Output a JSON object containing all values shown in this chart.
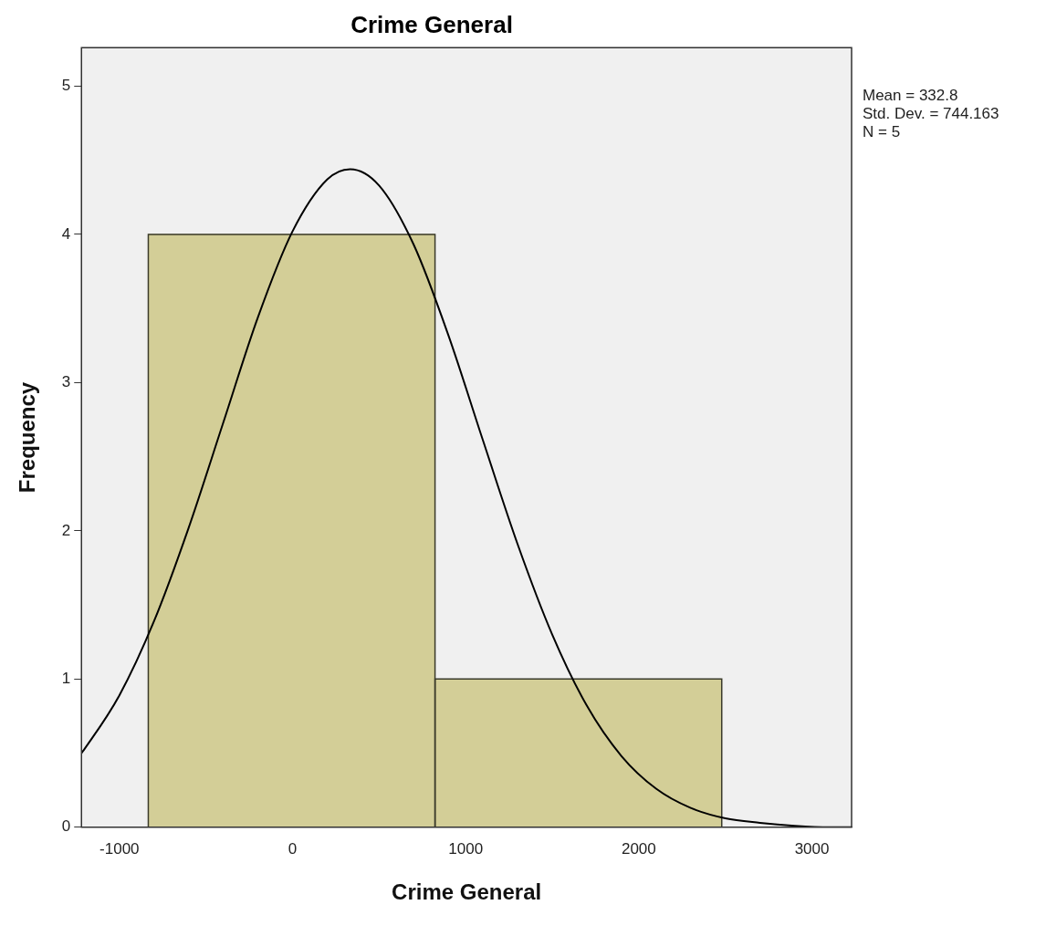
{
  "chart_data": {
    "type": "histogram",
    "title": "Crime General",
    "xlabel": "Crime General",
    "ylabel": "Frequency",
    "bins": [
      -833,
      823,
      2479
    ],
    "values": [
      4,
      1
    ],
    "color": "#d3ce97",
    "series": [
      {
        "type": "line",
        "color": "#000000",
        "x": [
          -1219,
          -1200,
          -1000,
          -800,
          -600,
          -400,
          -200,
          0,
          200,
          332.8,
          500,
          700,
          900,
          1100,
          1300,
          1500,
          1700,
          1900,
          2100,
          2300,
          2500,
          2700,
          2900,
          3100,
          3229
        ],
        "values": [
          0.5,
          0.53,
          0.89,
          1.39,
          2.02,
          2.73,
          3.44,
          4.02,
          4.37,
          4.44,
          4.33,
          3.93,
          3.32,
          2.61,
          1.91,
          1.3,
          0.82,
          0.48,
          0.26,
          0.13,
          0.06,
          0.03,
          0.01,
          0,
          0
        ]
      }
    ],
    "xlim": [
      -1219,
      3229
    ],
    "xticks": [
      -1000,
      0,
      1000,
      2000,
      3000
    ],
    "ylim": [
      0,
      5.26
    ],
    "yticks": [
      0,
      1,
      2,
      3,
      4,
      5
    ],
    "grid": false,
    "legend": false,
    "marker": "none",
    "annotations": [
      "Mean = 332.8",
      "Std. Dev. = 744.163",
      "N = 5"
    ]
  }
}
